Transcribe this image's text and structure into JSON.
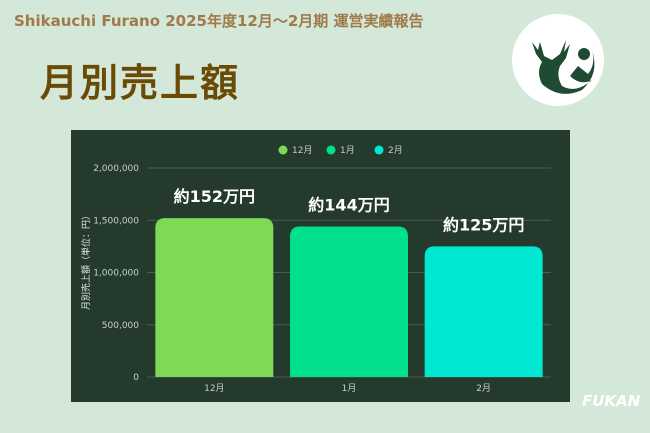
{
  "header": {
    "subtitle": "Shikauchi Furano 2025年度12月〜2月期 運営実績報告",
    "title": "月別売上額"
  },
  "brand": "FUKAN",
  "chart_data": {
    "type": "bar",
    "categories": [
      "12月",
      "1月",
      "2月"
    ],
    "values": [
      1520000,
      1440000,
      1250000
    ],
    "data_labels": [
      "約152万円",
      "約144万円",
      "約125万円"
    ],
    "colors": [
      "#7ed957",
      "#00e08a",
      "#00e8d2"
    ],
    "legend": [
      "12月",
      "1月",
      "2月"
    ],
    "legend_position": "top",
    "ylabel": "月別売上額（単位：円）",
    "ylim": [
      0,
      2000000
    ],
    "yticks": [
      "0",
      "500,000",
      "1,000,000",
      "1,500,000",
      "2,000,000"
    ],
    "grid": true
  }
}
